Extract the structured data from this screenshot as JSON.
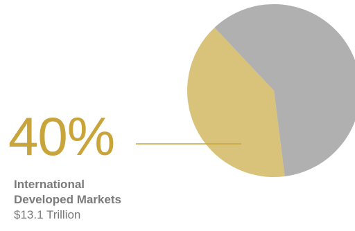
{
  "colors": {
    "accent": "#c9a43a",
    "highlight_slice": "#d9c27a",
    "other_slice": "#b0b0b0",
    "text_grey": "#7a7a7a"
  },
  "callout": {
    "percent": "40%",
    "title_line1": "International",
    "title_line2": "Developed Markets",
    "amount": "$13.1 Trillion"
  },
  "chart_data": {
    "type": "pie",
    "title": "",
    "slices": [
      {
        "value": 48,
        "color": "#b0b0b0",
        "highlight": false
      },
      {
        "value": 40,
        "color": "#d9c27a",
        "highlight": true
      },
      {
        "value": 12,
        "color": "#b0b0b0",
        "highlight": false
      }
    ],
    "start_angle_deg": 0,
    "direction": "clockwise"
  }
}
